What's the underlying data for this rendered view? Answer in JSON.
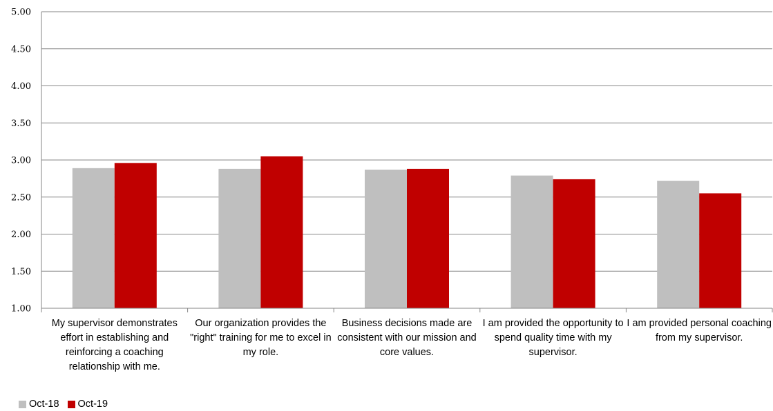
{
  "chart_data": {
    "type": "bar",
    "categories": [
      "My supervisor demonstrates effort in establishing and reinforcing a coaching relationship with me.",
      "Our organization provides the \"right\" training for me to excel in my role.",
      "Business decisions made are consistent with our mission and core values.",
      "I am provided the opportunity to spend quality time with my supervisor.",
      "I am provided personal coaching from my supervisor."
    ],
    "series": [
      {
        "name": "Oct-18",
        "color": "#bfbfbf",
        "values": [
          2.89,
          2.88,
          2.87,
          2.79,
          2.72
        ]
      },
      {
        "name": "Oct-19",
        "color": "#c00000",
        "values": [
          2.96,
          3.05,
          2.88,
          2.74,
          2.55
        ]
      }
    ],
    "ylim": [
      1.0,
      5.0
    ],
    "yticks": [
      "1.00",
      "1.50",
      "2.00",
      "2.50",
      "3.00",
      "3.50",
      "4.00",
      "4.50",
      "5.00"
    ],
    "grid": true,
    "legend_position": "bottom-left"
  }
}
